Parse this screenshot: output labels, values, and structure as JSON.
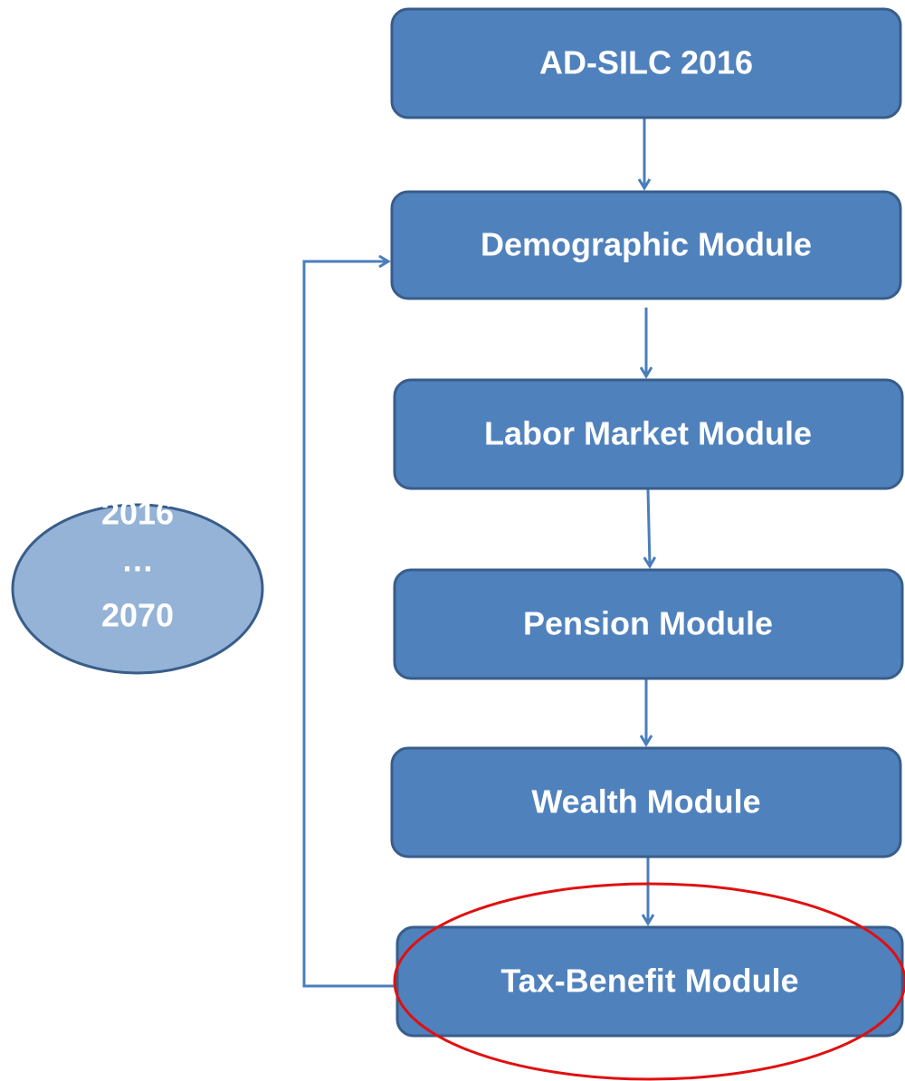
{
  "nodes": [
    {
      "label": "AD-SILC 2016"
    },
    {
      "label": "Demographic Module"
    },
    {
      "label": "Labor Market Module"
    },
    {
      "label": "Pension Module"
    },
    {
      "label": "Wealth Module"
    },
    {
      "label": "Tax-Benefit Module"
    }
  ],
  "timeline": {
    "lines": [
      "2016",
      "…",
      "2070"
    ]
  }
}
